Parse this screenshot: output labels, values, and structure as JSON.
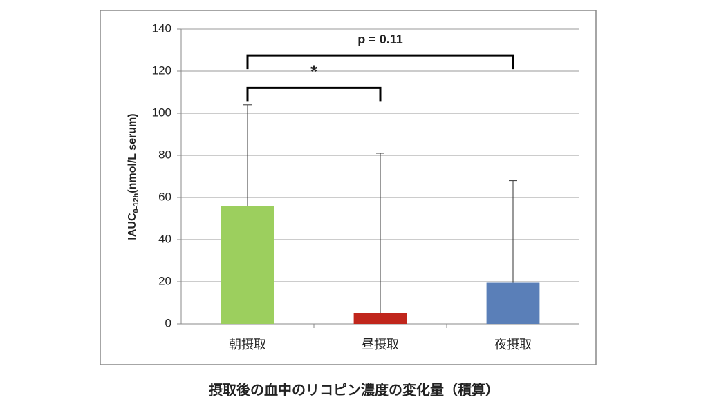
{
  "chart_data": {
    "type": "bar",
    "title": "摂取後の血中のリコピン濃度の変化量（積算）",
    "y_label": {
      "main": "IAUC",
      "subscript": "0-12h",
      "unit": "(nmol/L serum)"
    },
    "categories": [
      "朝摂取",
      "昼摂取",
      "夜摂取"
    ],
    "values": [
      56,
      5,
      19.5
    ],
    "errors": [
      48,
      76,
      48.5
    ],
    "colors": [
      "#9ccf5e",
      "#c0261c",
      "#5a7fb8"
    ],
    "ylim": [
      0,
      140
    ],
    "yticks": [
      0,
      20,
      40,
      60,
      80,
      100,
      120,
      140
    ],
    "grid": true,
    "annotations": [
      {
        "text": "*",
        "from": 0,
        "to": 1,
        "y": 112
      },
      {
        "text": "p = 0.11",
        "from": 0,
        "to": 2,
        "y": 127.5
      }
    ]
  }
}
